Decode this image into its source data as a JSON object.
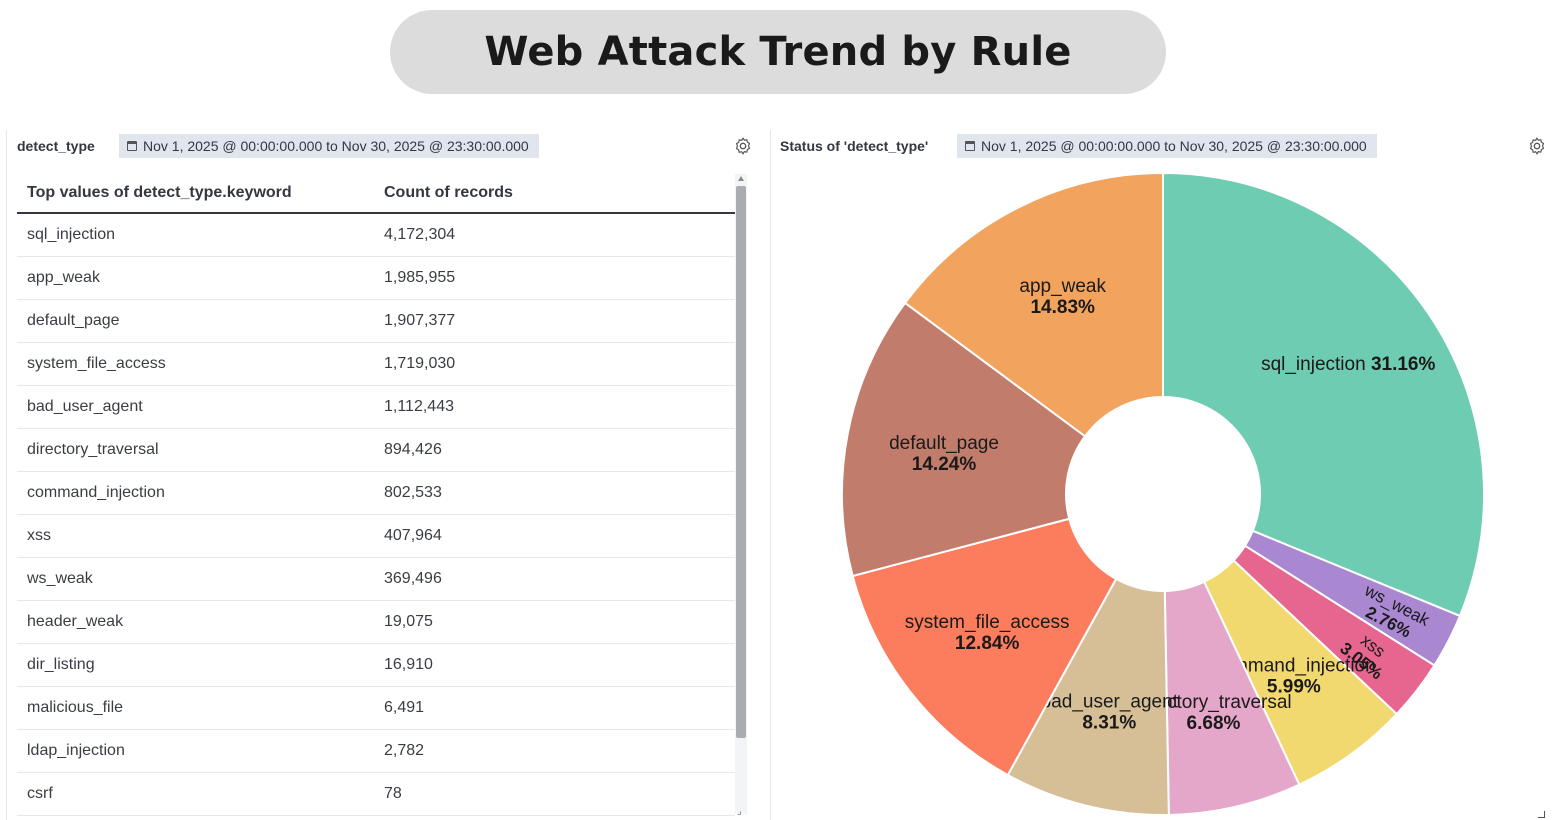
{
  "title": "Web Attack Trend by Rule",
  "left_panel": {
    "title": "detect_type",
    "date_range": "Nov 1, 2025 @ 00:00:00.000 to Nov 30, 2025 @ 23:30:00.000",
    "columns": [
      "Top values of detect_type.keyword",
      "Count of records"
    ],
    "rows": [
      [
        "sql_injection",
        "4,172,304"
      ],
      [
        "app_weak",
        "1,985,955"
      ],
      [
        "default_page",
        "1,907,377"
      ],
      [
        "system_file_access",
        "1,719,030"
      ],
      [
        "bad_user_agent",
        "1,112,443"
      ],
      [
        "directory_traversal",
        "894,426"
      ],
      [
        "command_injection",
        "802,533"
      ],
      [
        "xss",
        "407,964"
      ],
      [
        "ws_weak",
        "369,496"
      ],
      [
        "header_weak",
        "19,075"
      ],
      [
        "dir_listing",
        "16,910"
      ],
      [
        "malicious_file",
        "6,491"
      ],
      [
        "ldap_injection",
        "2,782"
      ],
      [
        "csrf",
        "78"
      ]
    ]
  },
  "right_panel": {
    "title": "Status of 'detect_type'",
    "date_range": "Nov 1, 2025 @ 00:00:00.000 to Nov 30, 2025 @ 23:30:00.000"
  },
  "chart_data": {
    "type": "pie",
    "donut": true,
    "slices": [
      {
        "label": "sql_injection",
        "percent": 31.16,
        "percent_label": "31.16%",
        "color": "#6dccb1"
      },
      {
        "label": "ws_weak",
        "percent": 2.76,
        "percent_label": "2.76%",
        "color": "#a987d1"
      },
      {
        "label": "xss",
        "percent": 3.05,
        "percent_label": "3.05%",
        "color": "#e7668f"
      },
      {
        "label": "command_injection",
        "percent": 5.99,
        "percent_label": "5.99%",
        "color": "#f1d86f"
      },
      {
        "label": "directory_traversal",
        "percent": 6.68,
        "percent_label": "6.68%",
        "color": "#e4a6c9"
      },
      {
        "label": "bad_user_agent",
        "percent": 8.31,
        "percent_label": "8.31%",
        "color": "#d6bf97"
      },
      {
        "label": "system_file_access",
        "percent": 12.84,
        "percent_label": "12.84%",
        "color": "#fc7c5e"
      },
      {
        "label": "default_page",
        "percent": 14.24,
        "percent_label": "14.24%",
        "color": "#c27c6b"
      },
      {
        "label": "app_weak",
        "percent": 14.83,
        "percent_label": "14.83%",
        "color": "#f2a35d"
      }
    ]
  }
}
